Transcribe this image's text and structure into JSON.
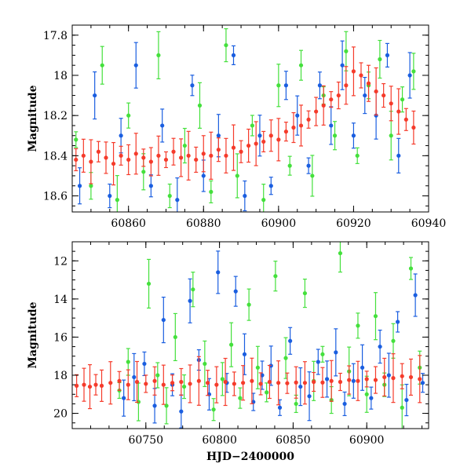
{
  "colors": {
    "green": "#44e03c",
    "blue": "#1a5ee0",
    "red": "#f53b2b",
    "axis": "#000000",
    "background": "#ffffff"
  },
  "chart_data": [
    {
      "type": "scatter",
      "title": "",
      "xlabel": "",
      "ylabel": "Magnitude",
      "xlim": [
        60845,
        60940
      ],
      "ylim": [
        18.68,
        17.75
      ],
      "y_inverted": true,
      "xticks": [
        60860,
        60880,
        60900,
        60920,
        60940
      ],
      "yticks": [
        17.8,
        18,
        18.2,
        18.4,
        18.6
      ],
      "marker_style": "filled circles with vertical error bars",
      "series": [
        {
          "color": "green",
          "x": [
            60846,
            60850,
            60853,
            60857,
            60860,
            60864,
            60868,
            60871,
            60875,
            60879,
            60882,
            60886,
            60889,
            60893,
            60896,
            60900,
            60903,
            60906,
            60909,
            60912,
            60915,
            60918,
            60921,
            60924,
            60927,
            60930,
            60933,
            60936
          ],
          "y": [
            18.32,
            18.55,
            17.95,
            18.62,
            18.2,
            18.48,
            17.9,
            18.6,
            18.35,
            18.15,
            18.58,
            17.85,
            18.5,
            18.25,
            18.62,
            18.05,
            18.45,
            17.95,
            18.5,
            18.1,
            18.3,
            17.88,
            18.4,
            18.05,
            17.92,
            18.3,
            18.12,
            17.98
          ]
        },
        {
          "color": "blue",
          "x": [
            60847,
            60851,
            60855,
            60858,
            60862,
            60866,
            60869,
            60873,
            60877,
            60880,
            60884,
            60888,
            60891,
            60895,
            60898,
            60902,
            60905,
            60908,
            60911,
            60914,
            60917,
            60920,
            60923,
            60926,
            60929,
            60932,
            60935
          ],
          "y": [
            18.55,
            18.1,
            18.6,
            18.3,
            17.95,
            18.55,
            18.25,
            18.62,
            18.05,
            18.5,
            18.3,
            17.9,
            18.6,
            18.3,
            18.55,
            18.05,
            18.2,
            18.45,
            18.05,
            18.25,
            17.95,
            18.3,
            18.1,
            18.2,
            17.9,
            18.4,
            18.0
          ]
        },
        {
          "color": "red",
          "x": [
            60846,
            60848,
            60850,
            60852,
            60854,
            60856,
            60858,
            60860,
            60862,
            60864,
            60866,
            60868,
            60870,
            60872,
            60874,
            60876,
            60878,
            60880,
            60882,
            60884,
            60886,
            60888,
            60890,
            60892,
            60894,
            60896,
            60898,
            60900,
            60902,
            60904,
            60906,
            60908,
            60910,
            60912,
            60914,
            60916,
            60918,
            60920,
            60922,
            60924,
            60926,
            60928,
            60930,
            60932,
            60934,
            60936
          ],
          "y": [
            18.42,
            18.4,
            18.43,
            18.38,
            18.41,
            18.44,
            18.4,
            18.42,
            18.39,
            18.41,
            18.43,
            18.4,
            18.42,
            18.38,
            18.41,
            18.4,
            18.42,
            18.39,
            18.4,
            18.37,
            18.4,
            18.36,
            18.38,
            18.35,
            18.34,
            18.33,
            18.3,
            18.32,
            18.28,
            18.26,
            18.25,
            18.22,
            18.18,
            18.15,
            18.12,
            18.1,
            18.05,
            17.98,
            18.0,
            18.04,
            18.08,
            18.1,
            18.14,
            18.18,
            18.22,
            18.26
          ]
        }
      ]
    },
    {
      "type": "scatter",
      "title": "",
      "xlabel": "HJD−2400000",
      "ylabel": "Magnitude",
      "xlim": [
        60700,
        60942
      ],
      "ylim": [
        20.8,
        11.0
      ],
      "y_inverted": true,
      "xticks": [
        60750,
        60800,
        60850,
        60900
      ],
      "yticks": [
        12,
        14,
        16,
        18,
        20
      ],
      "marker_style": "filled circles with vertical error bars",
      "series": [
        {
          "color": "green",
          "x": [
            60732,
            60738,
            60745,
            60752,
            60758,
            60764,
            60770,
            60776,
            60782,
            60790,
            60796,
            60802,
            60808,
            60814,
            60820,
            60826,
            60832,
            60838,
            60845,
            60852,
            60858,
            60864,
            60870,
            60876,
            60882,
            60888,
            60894,
            60900,
            60906,
            60912,
            60918,
            60924,
            60930,
            60936
          ],
          "y": [
            18.8,
            17.3,
            19.4,
            13.2,
            18.0,
            19.6,
            16.0,
            18.6,
            13.5,
            17.4,
            19.8,
            18.2,
            16.4,
            19.2,
            14.3,
            17.6,
            18.9,
            12.8,
            17.1,
            19.5,
            13.7,
            18.3,
            16.9,
            19.3,
            11.6,
            17.8,
            15.4,
            19.0,
            14.9,
            18.5,
            16.2,
            19.7,
            12.4,
            17.6
          ]
        },
        {
          "color": "blue",
          "x": [
            60735,
            60742,
            60749,
            60756,
            60762,
            60768,
            60774,
            60780,
            60786,
            60793,
            60799,
            60805,
            60811,
            60817,
            60823,
            60829,
            60835,
            60841,
            60848,
            60855,
            60861,
            60867,
            60873,
            60879,
            60885,
            60891,
            60897,
            60903,
            60909,
            60915,
            60921,
            60927,
            60933,
            60938
          ],
          "y": [
            19.2,
            18.1,
            17.4,
            19.6,
            15.1,
            18.5,
            19.9,
            14.1,
            17.2,
            19.0,
            12.6,
            18.4,
            13.6,
            16.9,
            19.4,
            18.0,
            17.5,
            19.7,
            16.2,
            18.6,
            19.1,
            17.3,
            18.2,
            16.8,
            19.5,
            18.3,
            17.6,
            19.2,
            16.5,
            18.0,
            15.2,
            19.3,
            13.8,
            18.4
          ]
        },
        {
          "color": "red",
          "x": [
            60703,
            60708,
            60712,
            60716,
            60720,
            60726,
            60732,
            60738,
            60744,
            60750,
            60756,
            60762,
            60768,
            60774,
            60780,
            60786,
            60792,
            60798,
            60804,
            60810,
            60816,
            60822,
            60828,
            60834,
            60840,
            60846,
            60852,
            60858,
            60864,
            60870,
            60876,
            60882,
            60888,
            60894,
            60900,
            60906,
            60912,
            60918,
            60924,
            60930,
            60936
          ],
          "y": [
            18.55,
            18.5,
            18.6,
            18.5,
            18.55,
            18.4,
            18.3,
            18.5,
            18.35,
            18.45,
            18.3,
            18.5,
            18.4,
            18.35,
            18.45,
            18.3,
            18.4,
            18.5,
            18.35,
            18.45,
            18.4,
            18.3,
            18.45,
            18.35,
            18.4,
            18.42,
            18.38,
            18.4,
            18.35,
            18.38,
            18.3,
            18.35,
            18.25,
            18.3,
            18.2,
            18.25,
            18.1,
            18.15,
            18.05,
            18.1,
            18.2
          ]
        }
      ]
    }
  ]
}
